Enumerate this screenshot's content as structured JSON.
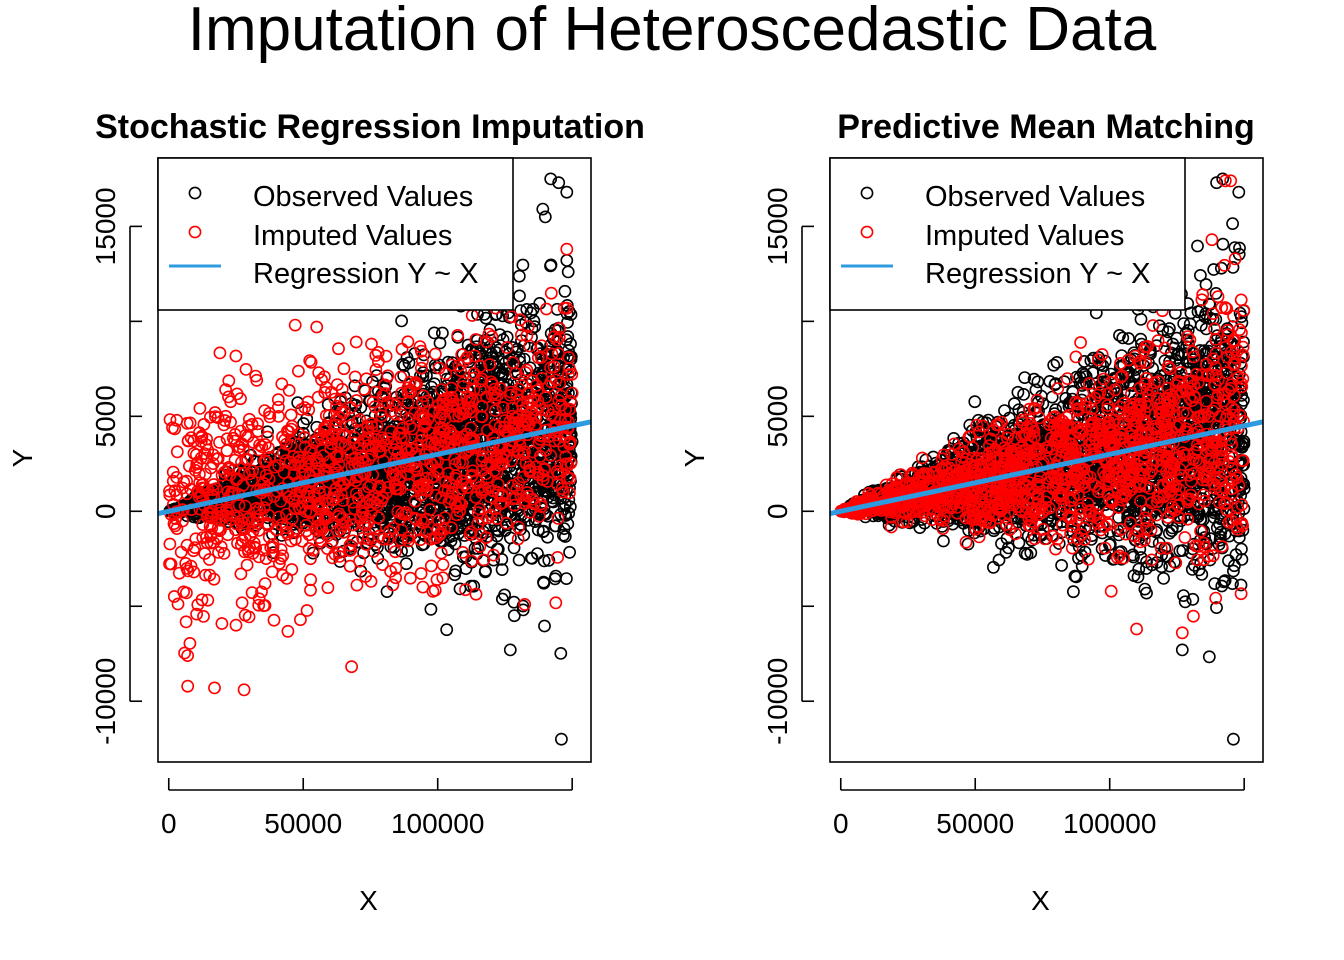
{
  "title": "Imputation of Heteroscedastic Data",
  "colors": {
    "observed": "#000000",
    "imputed": "#ff0000",
    "regression": "#2e9be0",
    "axis": "#000000"
  },
  "chart_data": [
    {
      "type": "scatter",
      "title": "Stochastic Regression Imputation",
      "xlabel": "X",
      "ylabel": "Y",
      "xlim": [
        -4000,
        157000
      ],
      "ylim": [
        -13200,
        18600
      ],
      "x_ticks": [
        0,
        50000,
        100000,
        150000
      ],
      "x_tick_labels": [
        "0",
        "50000",
        "100000",
        ""
      ],
      "y_ticks": [
        -10000,
        -5000,
        0,
        5000,
        10000,
        15000
      ],
      "y_tick_labels": [
        "-10000",
        "",
        "0",
        "5000",
        "",
        "15000"
      ],
      "legend": {
        "position": "top-left",
        "entries": [
          "Observed Values",
          "Imputed Values",
          "Regression Y ~ X"
        ]
      },
      "series": [
        {
          "name": "Observed Values",
          "marker": "open-circle",
          "generator": {
            "n": 2600,
            "x_range": [
              0,
              150000
            ],
            "mean_slope": 0.03,
            "sd_slope": 0.035
          },
          "points": [
            [
              146000,
              -12000
            ],
            [
              142000,
              17500
            ],
            [
              145000,
              17300
            ],
            [
              140000,
              15500
            ],
            [
              127000,
              -7300
            ],
            [
              148000,
              16800
            ]
          ]
        },
        {
          "name": "Imputed Values",
          "marker": "open-circle",
          "generator": {
            "n": 1200,
            "x_range": [
              0,
              150000
            ],
            "mean_slope": 0.03,
            "residual_sd": 3000
          },
          "points": [
            [
              17000,
              -9300
            ],
            [
              28000,
              -9400
            ],
            [
              7000,
              -7600
            ],
            [
              25000,
              -6000
            ],
            [
              47000,
              9800
            ],
            [
              55000,
              9700
            ],
            [
              148000,
              13800
            ]
          ]
        }
      ],
      "regression": {
        "name": "Regression Y ~ X",
        "intercept": 0,
        "slope": 0.03
      }
    },
    {
      "type": "scatter",
      "title": "Predictive Mean Matching",
      "xlabel": "X",
      "ylabel": "Y",
      "xlim": [
        -4000,
        157000
      ],
      "ylim": [
        -13200,
        18600
      ],
      "x_ticks": [
        0,
        50000,
        100000,
        150000
      ],
      "x_tick_labels": [
        "0",
        "50000",
        "100000",
        ""
      ],
      "y_ticks": [
        -10000,
        -5000,
        0,
        5000,
        10000,
        15000
      ],
      "y_tick_labels": [
        "-10000",
        "",
        "0",
        "5000",
        "",
        "15000"
      ],
      "legend": {
        "position": "top-left",
        "entries": [
          "Observed Values",
          "Imputed Values",
          "Regression Y ~ X"
        ]
      },
      "series": [
        {
          "name": "Observed Values",
          "marker": "open-circle",
          "generator": {
            "n": 2600,
            "x_range": [
              0,
              150000
            ],
            "mean_slope": 0.03,
            "sd_slope": 0.035
          },
          "points": [
            [
              146000,
              -12000
            ],
            [
              142000,
              17500
            ],
            [
              148000,
              16800
            ],
            [
              127000,
              -7300
            ]
          ]
        },
        {
          "name": "Imputed Values",
          "marker": "open-circle",
          "generator": {
            "n": 1400,
            "x_range": [
              0,
              150000
            ],
            "mean_slope": 0.03,
            "sd_slope": 0.035
          },
          "points": [
            [
              143000,
              17400
            ],
            [
              145000,
              17400
            ],
            [
              127000,
              -6400
            ],
            [
              110000,
              -6200
            ],
            [
              138000,
              14300
            ]
          ]
        }
      ],
      "regression": {
        "name": "Regression Y ~ X",
        "intercept": 0,
        "slope": 0.03
      }
    }
  ]
}
